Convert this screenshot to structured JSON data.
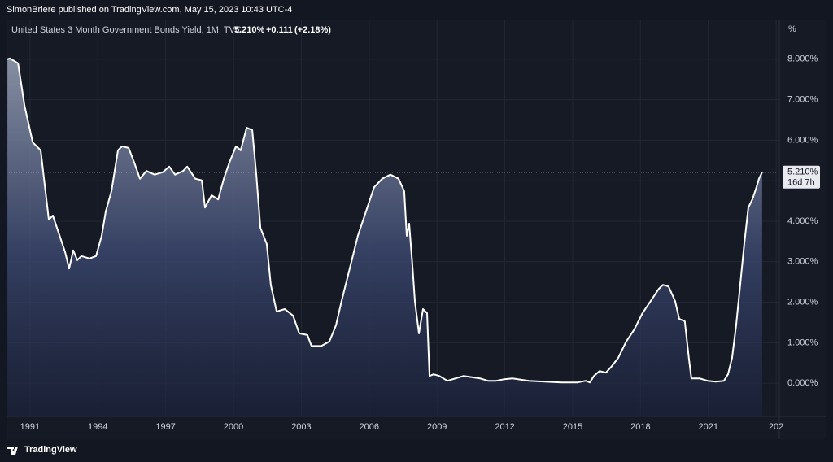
{
  "header": "SimonBriere published on TradingView.com, May 15, 2023 10:43 UTC-4",
  "footer": "TradingView",
  "chart_data": {
    "type": "area",
    "legend": {
      "name": "United States 3 Month Government Bonds Yield, 1M, TVC",
      "last": "5.210%",
      "change": "+0.111",
      "change_pct": "(+2.18%)"
    },
    "y_unit": "%",
    "last_price": {
      "value": 5.21,
      "label": "5.210%"
    },
    "countdown": "16d 7h",
    "x": [
      1990.0,
      1990.11,
      1990.47,
      1990.76,
      1991.12,
      1991.47,
      1991.83,
      1992.01,
      1992.19,
      1992.55,
      1992.73,
      1992.91,
      1993.09,
      1993.27,
      1993.63,
      1993.92,
      1994.17,
      1994.35,
      1994.6,
      1994.89,
      1995.07,
      1995.36,
      1995.61,
      1995.86,
      1996.15,
      1996.51,
      1996.87,
      1997.16,
      1997.41,
      1997.77,
      1997.95,
      1998.31,
      1998.6,
      1998.74,
      1999.03,
      1999.32,
      1999.57,
      1999.82,
      2000.11,
      2000.32,
      2000.58,
      2000.83,
      2001.01,
      2001.19,
      2001.47,
      2001.65,
      2001.91,
      2002.27,
      2002.63,
      2002.91,
      2003.27,
      2003.45,
      2003.88,
      2004.24,
      2004.53,
      2004.78,
      2005.14,
      2005.5,
      2005.86,
      2006.22,
      2006.58,
      2006.94,
      2007.3,
      2007.55,
      2007.66,
      2007.77,
      2007.91,
      2008.02,
      2008.2,
      2008.38,
      2008.56,
      2008.67,
      2008.85,
      2009.1,
      2009.46,
      2009.82,
      2010.18,
      2010.9,
      2011.26,
      2011.62,
      2011.98,
      2012.34,
      2013.06,
      2013.78,
      2014.5,
      2015.22,
      2015.58,
      2015.76,
      2015.94,
      2016.19,
      2016.47,
      2016.73,
      2017.01,
      2017.37,
      2017.73,
      2018.09,
      2018.45,
      2018.81,
      2018.99,
      2019.24,
      2019.53,
      2019.71,
      2019.96,
      2020.14,
      2020.25,
      2020.61,
      2020.97,
      2021.33,
      2021.69,
      2021.87,
      2022.05,
      2022.23,
      2022.41,
      2022.59,
      2022.77,
      2022.95,
      2023.13,
      2023.24,
      2023.38
    ],
    "series": [
      {
        "name": "United States 3 Month Government Bonds Yield",
        "color": "#ffffff",
        "values": [
          8.0,
          8.02,
          7.9,
          6.85,
          5.95,
          5.75,
          4.04,
          4.14,
          3.84,
          3.24,
          2.83,
          3.28,
          3.04,
          3.14,
          3.08,
          3.14,
          3.64,
          4.24,
          4.74,
          5.75,
          5.85,
          5.81,
          5.45,
          5.05,
          5.24,
          5.15,
          5.21,
          5.35,
          5.15,
          5.24,
          5.35,
          5.05,
          5.01,
          4.34,
          4.64,
          4.54,
          5.05,
          5.45,
          5.85,
          5.75,
          6.31,
          6.25,
          5.15,
          3.84,
          3.44,
          2.43,
          1.77,
          1.83,
          1.67,
          1.23,
          1.19,
          0.92,
          0.92,
          1.03,
          1.43,
          2.03,
          2.83,
          3.64,
          4.24,
          4.84,
          5.05,
          5.15,
          5.05,
          4.74,
          3.64,
          3.94,
          2.93,
          2.03,
          1.23,
          1.83,
          1.73,
          0.18,
          0.22,
          0.18,
          0.06,
          0.12,
          0.18,
          0.12,
          0.06,
          0.06,
          0.1,
          0.12,
          0.06,
          0.04,
          0.02,
          0.02,
          0.06,
          0.02,
          0.18,
          0.3,
          0.26,
          0.42,
          0.62,
          1.03,
          1.33,
          1.73,
          2.03,
          2.33,
          2.43,
          2.39,
          2.03,
          1.59,
          1.53,
          0.62,
          0.12,
          0.12,
          0.06,
          0.04,
          0.06,
          0.22,
          0.62,
          1.43,
          2.43,
          3.44,
          4.34,
          4.54,
          4.84,
          5.05,
          5.21
        ]
      }
    ],
    "xlim": [
      1989.96,
      2024.14
    ],
    "xticks": [
      1991,
      1994,
      1997,
      2000,
      2003,
      2006,
      2009,
      2012,
      2015,
      2018,
      2021,
      {
        "value": 2024,
        "label": "202"
      }
    ],
    "ylim": [
      -0.82,
      8.98
    ],
    "yticks": [
      {
        "value": 0,
        "label": "0.000%"
      },
      {
        "value": 1,
        "label": "1.000%"
      },
      {
        "value": 2,
        "label": "2.000%"
      },
      {
        "value": 3,
        "label": "3.000%"
      },
      {
        "value": 4,
        "label": "4.000%"
      },
      {
        "value": 5,
        "label": "5.000%"
      },
      {
        "value": 6,
        "label": "6.000%"
      },
      {
        "value": 7,
        "label": "7.000%"
      },
      {
        "value": 8,
        "label": "8.000%"
      }
    ],
    "grid": true
  }
}
